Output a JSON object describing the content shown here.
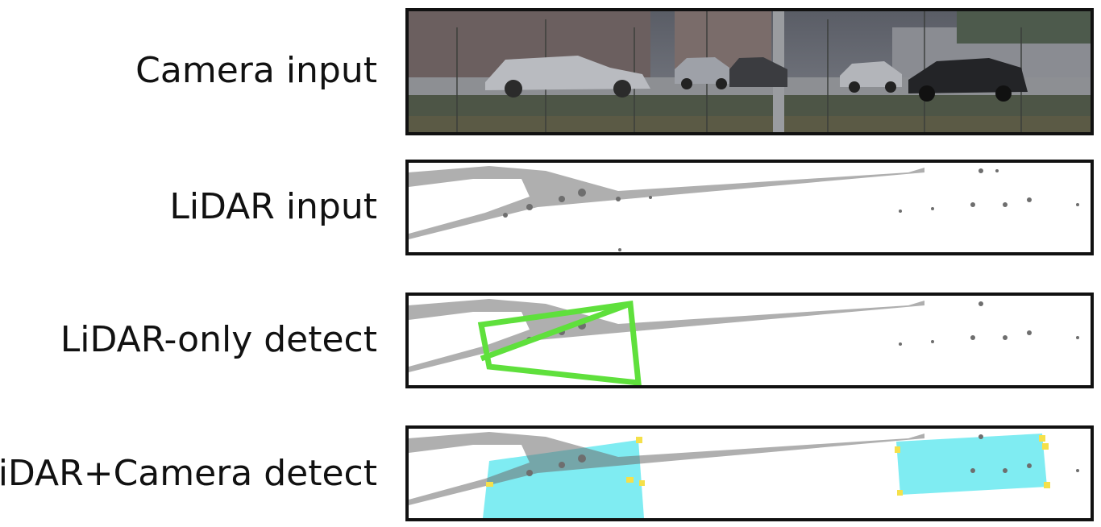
{
  "rows": [
    {
      "label": "Camera input"
    },
    {
      "label": "LiDAR input"
    },
    {
      "label": "LiDAR-only detect"
    },
    {
      "label": "LiDAR+Camera detect"
    }
  ],
  "colors": {
    "frame": "#111111",
    "lidar_points": "#6e6e6e",
    "lidar_only_box": "#5fe03c",
    "fusion_box_fill": "#7fecf2",
    "box_corner": "#f5e04a"
  },
  "icons": [
    "camera-scene",
    "lidar-point-cloud",
    "detection-box"
  ]
}
